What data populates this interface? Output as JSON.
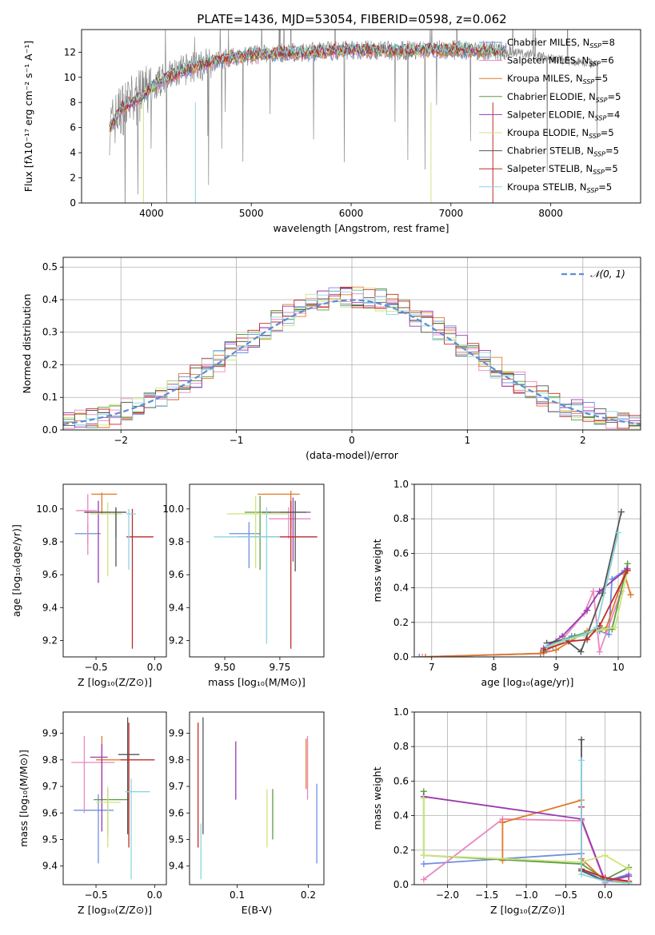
{
  "title": "PLATE=1436, MJD=53054, FIBERID=0598, z=0.062",
  "colors": {
    "chabrier_miles": "#6f8fe0",
    "salpeter_miles": "#e888c0",
    "kroupa_miles": "#e07a2a",
    "chabrier_elodie": "#5f9a45",
    "salpeter_elodie": "#9a3ab0",
    "kroupa_elodie": "#cde57a",
    "chabrier_stelib": "#555555",
    "salpeter_stelib": "#c02a2a",
    "kroupa_stelib": "#8ad6df"
  },
  "chart_data": [
    {
      "id": "spectrum",
      "type": "line",
      "title": "PLATE=1436, MJD=53054, FIBERID=0598, z=0.062",
      "xlabel": "wavelength [Angstrom, rest frame]",
      "ylabel": "Flux [fλ10⁻¹⁷ erg cm⁻² s⁻¹ A⁻¹]",
      "xlim": [
        3300,
        8900
      ],
      "ylim": [
        0,
        13.8
      ],
      "xticks": [
        "4000",
        "5000",
        "6000",
        "7000",
        "8000"
      ],
      "yticks": [
        "0",
        "2",
        "4",
        "6",
        "8",
        "10",
        "12"
      ],
      "xtick_values": [
        4000,
        5000,
        6000,
        7000,
        8000
      ],
      "ytick_values": [
        0,
        2,
        4,
        6,
        8,
        10,
        12
      ],
      "legend": [
        {
          "name": "Chabrier MILES, N_SSP=8",
          "color_key": "chabrier_miles"
        },
        {
          "name": "Salpeter MILES, N_SSP=6",
          "color_key": "salpeter_miles"
        },
        {
          "name": "Kroupa MILES, N_SSP=5",
          "color_key": "kroupa_miles"
        },
        {
          "name": "Chabrier ELODIE, N_SSP=5",
          "color_key": "chabrier_elodie"
        },
        {
          "name": "Salpeter ELODIE, N_SSP=4",
          "color_key": "salpeter_elodie"
        },
        {
          "name": "Kroupa ELODIE, N_SSP=5",
          "color_key": "kroupa_elodie"
        },
        {
          "name": "Chabrier STELIB, N_SSP=5",
          "color_key": "chabrier_stelib"
        },
        {
          "name": "Salpeter STELIB, N_SSP=5",
          "color_key": "salpeter_stelib"
        },
        {
          "name": "Kroupa STELIB, N_SSP=5",
          "color_key": "kroupa_stelib"
        }
      ],
      "continuum": [
        [
          3580,
          6.0
        ],
        [
          3700,
          7.5
        ],
        [
          3900,
          8.5
        ],
        [
          4100,
          9.8
        ],
        [
          4400,
          10.8
        ],
        [
          4800,
          11.6
        ],
        [
          5200,
          11.9
        ],
        [
          5600,
          12.0
        ],
        [
          6000,
          12.2
        ],
        [
          6500,
          12.1
        ],
        [
          7000,
          12.2
        ],
        [
          7500,
          12.1
        ],
        [
          7800,
          11.8
        ],
        [
          8000,
          11.5
        ],
        [
          8300,
          11.2
        ],
        [
          8500,
          11.1
        ]
      ]
    },
    {
      "id": "residuals",
      "type": "step",
      "xlabel": "(data-model)/error",
      "ylabel": "Normed distribution",
      "xlim": [
        -2.5,
        2.5
      ],
      "ylim": [
        0,
        0.53
      ],
      "xticks": [
        "−2",
        "−1",
        "0",
        "1",
        "2"
      ],
      "yticks": [
        "0.0",
        "0.1",
        "0.2",
        "0.3",
        "0.4",
        "0.5"
      ],
      "xtick_values": [
        -2,
        -1,
        0,
        1,
        2
      ],
      "ytick_values": [
        0,
        0.1,
        0.2,
        0.3,
        0.4,
        0.5
      ],
      "legend": "𝒩(0, 1)",
      "gaussian_color": "#5b8dd6"
    },
    {
      "id": "age_vs_Z",
      "type": "errorbar",
      "xlabel": "Z [log₁₀(Z/Z⊙)]",
      "ylabel": "age  [log₁₀(age/yr)]",
      "xlim": [
        -0.78,
        0.1
      ],
      "ylim": [
        9.1,
        10.15
      ],
      "xticks": [
        "−0.5",
        "0.0"
      ],
      "yticks": [
        "9.2",
        "9.4",
        "9.6",
        "9.8",
        "10.0"
      ],
      "xtick_values": [
        -0.5,
        0.0
      ],
      "ytick_values": [
        9.2,
        9.4,
        9.6,
        9.8,
        10.0
      ],
      "points": [
        {
          "k": "chabrier_miles",
          "x": -0.57,
          "y": 9.85,
          "xe": [
            0.11,
            0.11
          ],
          "ye": [
            0.06,
            0.06
          ]
        },
        {
          "k": "salpeter_miles",
          "x": -0.57,
          "y": 9.99,
          "xe": [
            0.1,
            0.08
          ],
          "ye": [
            0.27,
            0.1
          ]
        },
        {
          "k": "kroupa_miles",
          "x": -0.45,
          "y": 10.09,
          "xe": [
            0.09,
            0.13
          ],
          "ye": [
            0.12,
            0.01
          ]
        },
        {
          "k": "chabrier_elodie",
          "x": -0.33,
          "y": 9.98,
          "xe": [
            0.06,
            0.08
          ],
          "ye": [
            0.15,
            0.02
          ]
        },
        {
          "k": "salpeter_elodie",
          "x": -0.48,
          "y": 9.98,
          "xe": [
            0.12,
            0.1
          ],
          "ye": [
            0.43,
            0.07
          ]
        },
        {
          "k": "kroupa_elodie",
          "x": -0.4,
          "y": 9.97,
          "xe": [
            0.15,
            0.12
          ],
          "ye": [
            0.38,
            0.07
          ]
        },
        {
          "k": "chabrier_stelib",
          "x": -0.33,
          "y": 9.98,
          "xe": [
            0.27,
            0.09
          ],
          "ye": [
            0.33,
            0.03
          ]
        },
        {
          "k": "salpeter_stelib",
          "x": -0.19,
          "y": 9.83,
          "xe": [
            0.05,
            0.18
          ],
          "ye": [
            0.68,
            0.17
          ]
        },
        {
          "k": "kroupa_stelib",
          "x": -0.22,
          "y": 9.97,
          "xe": [
            0.02,
            0.06
          ],
          "ye": [
            0.34,
            0.03
          ]
        }
      ]
    },
    {
      "id": "age_vs_mass",
      "type": "errorbar",
      "xlabel": "mass [log₁₀(M/M⊙)]",
      "ylabel": "",
      "xlim": [
        9.34,
        9.95
      ],
      "ylim": [
        9.1,
        10.15
      ],
      "xticks": [
        "9.50",
        "9.75"
      ],
      "yticks": [
        "9.2",
        "9.4",
        "9.6",
        "9.8",
        "10.0"
      ],
      "xtick_values": [
        9.5,
        9.75
      ],
      "ytick_values": [
        9.2,
        9.4,
        9.6,
        9.8,
        10.0
      ],
      "points": [
        {
          "k": "chabrier_miles",
          "x": 9.61,
          "y": 9.85,
          "xe": [
            0.09,
            0.05
          ],
          "ye": [
            0.21,
            0.07
          ]
        },
        {
          "k": "salpeter_miles",
          "x": 9.79,
          "y": 9.94,
          "xe": [
            0.09,
            0.1
          ],
          "ye": [
            0.12,
            0.07
          ]
        },
        {
          "k": "kroupa_miles",
          "x": 9.8,
          "y": 10.09,
          "xe": [
            0.15,
            0.04
          ],
          "ye": [
            0.21,
            0.02
          ]
        },
        {
          "k": "chabrier_elodie",
          "x": 9.66,
          "y": 9.98,
          "xe": [
            0.07,
            0.05
          ],
          "ye": [
            0.35,
            0.1
          ]
        },
        {
          "k": "salpeter_elodie",
          "x": 9.81,
          "y": 9.98,
          "xe": [
            0.06,
            0.08
          ],
          "ye": [
            0.3,
            0.09
          ]
        },
        {
          "k": "kroupa_elodie",
          "x": 9.64,
          "y": 9.97,
          "xe": [
            0.13,
            0.15
          ],
          "ye": [
            0.33,
            0.11
          ]
        },
        {
          "k": "chabrier_stelib",
          "x": 9.82,
          "y": 9.98,
          "xe": [
            0.15,
            0.05
          ],
          "ye": [
            0.36,
            0.07
          ]
        },
        {
          "k": "salpeter_stelib",
          "x": 9.8,
          "y": 9.83,
          "xe": [
            0.24,
            0.12
          ],
          "ye": [
            0.68,
            0.22
          ]
        },
        {
          "k": "kroupa_stelib",
          "x": 9.69,
          "y": 9.83,
          "xe": [
            0.24,
            0.06
          ],
          "ye": [
            0.65,
            0.18
          ]
        }
      ]
    },
    {
      "id": "weight_vs_age",
      "type": "line",
      "xlabel": "age  [log₁₀(age/yr)]",
      "ylabel": "mass weight",
      "xlim": [
        6.72,
        10.36
      ],
      "ylim": [
        0,
        1.0
      ],
      "xticks": [
        "7",
        "8",
        "9",
        "10"
      ],
      "yticks": [
        "0.0",
        "0.2",
        "0.4",
        "0.6",
        "0.8",
        "1.0"
      ],
      "xtick_values": [
        7,
        8,
        9,
        10
      ],
      "ytick_values": [
        0,
        0.2,
        0.4,
        0.6,
        0.8,
        1.0
      ],
      "series": [
        {
          "k": "chabrier_miles",
          "x": [
            6.8,
            8.75,
            8.95,
            9.25,
            9.7,
            9.85,
            9.9,
            10.1
          ],
          "y": [
            0.0,
            0.02,
            0.06,
            0.12,
            0.15,
            0.13,
            0.45,
            0.5
          ]
        },
        {
          "k": "salpeter_miles",
          "x": [
            6.85,
            8.8,
            9.1,
            9.45,
            9.6,
            9.7,
            10.05
          ],
          "y": [
            0.0,
            0.02,
            0.1,
            0.25,
            0.38,
            0.03,
            0.38
          ]
        },
        {
          "k": "kroupa_miles",
          "x": [
            6.9,
            8.75,
            9.0,
            9.5,
            9.8,
            10.1,
            10.2
          ],
          "y": [
            0.0,
            0.02,
            0.04,
            0.15,
            0.16,
            0.48,
            0.36
          ]
        },
        {
          "k": "chabrier_elodie",
          "x": [
            8.8,
            9.0,
            9.3,
            9.7,
            9.9,
            10.15
          ],
          "y": [
            0.03,
            0.09,
            0.12,
            0.17,
            0.16,
            0.54
          ]
        },
        {
          "k": "salpeter_elodie",
          "x": [
            8.8,
            9.1,
            9.5,
            9.7,
            10.15
          ],
          "y": [
            0.05,
            0.12,
            0.27,
            0.38,
            0.51
          ]
        },
        {
          "k": "kroupa_elodie",
          "x": [
            8.8,
            9.1,
            9.5,
            9.75,
            9.95,
            10.15
          ],
          "y": [
            0.04,
            0.09,
            0.13,
            0.16,
            0.17,
            0.5
          ]
        },
        {
          "k": "chabrier_stelib",
          "x": [
            8.85,
            9.15,
            9.4,
            9.75,
            10.05
          ],
          "y": [
            0.08,
            0.1,
            0.03,
            0.37,
            0.84
          ]
        },
        {
          "k": "salpeter_stelib",
          "x": [
            8.8,
            9.2,
            9.5,
            9.7,
            10.15
          ],
          "y": [
            0.04,
            0.09,
            0.1,
            0.18,
            0.5
          ]
        },
        {
          "k": "kroupa_stelib",
          "x": [
            8.85,
            9.15,
            9.45,
            9.65,
            10.0
          ],
          "y": [
            0.06,
            0.1,
            0.13,
            0.17,
            0.72
          ]
        }
      ]
    },
    {
      "id": "mass_vs_Z",
      "type": "errorbar",
      "xlabel": "Z [log₁₀(Z/Z⊙)]",
      "ylabel": "mass [log₁₀(M/M⊙)]",
      "xlim": [
        -0.78,
        0.1
      ],
      "ylim": [
        9.33,
        9.98
      ],
      "xticks": [
        "−0.5",
        "0.0"
      ],
      "yticks": [
        "9.4",
        "9.5",
        "9.6",
        "9.7",
        "9.8",
        "9.9"
      ],
      "xtick_values": [
        -0.5,
        0.0
      ],
      "ytick_values": [
        9.4,
        9.5,
        9.6,
        9.7,
        9.8,
        9.9
      ],
      "points": [
        {
          "k": "chabrier_miles",
          "x": -0.48,
          "y": 9.61,
          "xe": [
            0.21,
            0.13
          ],
          "ye": [
            0.2,
            0.06
          ]
        },
        {
          "k": "salpeter_miles",
          "x": -0.6,
          "y": 9.79,
          "xe": [
            0.11,
            0.26
          ],
          "ye": [
            0.19,
            0.1
          ]
        },
        {
          "k": "kroupa_miles",
          "x": -0.45,
          "y": 9.8,
          "xe": [
            0.05,
            0.17
          ],
          "ye": [
            0.16,
            0.09
          ]
        },
        {
          "k": "chabrier_elodie",
          "x": -0.4,
          "y": 9.65,
          "xe": [
            0.12,
            0.18
          ],
          "ye": [
            0.14,
            0.04
          ]
        },
        {
          "k": "salpeter_elodie",
          "x": -0.45,
          "y": 9.81,
          "xe": [
            0.1,
            0.05
          ],
          "ye": [
            0.28,
            0.05
          ]
        },
        {
          "k": "kroupa_elodie",
          "x": -0.4,
          "y": 9.64,
          "xe": [
            0.1,
            0.11
          ],
          "ye": [
            0.17,
            0.06
          ]
        },
        {
          "k": "chabrier_stelib",
          "x": -0.23,
          "y": 9.82,
          "xe": [
            0.08,
            0.1
          ],
          "ye": [
            0.3,
            0.14
          ]
        },
        {
          "k": "salpeter_stelib",
          "x": -0.22,
          "y": 9.8,
          "xe": [
            0.07,
            0.22
          ],
          "ye": [
            0.33,
            0.14
          ]
        },
        {
          "k": "kroupa_stelib",
          "x": -0.2,
          "y": 9.68,
          "xe": [
            0.05,
            0.16
          ],
          "ye": [
            0.33,
            0.05
          ]
        }
      ]
    },
    {
      "id": "mass_vs_ebv",
      "type": "errorbar",
      "xlabel": "E(B-V)",
      "ylabel": "",
      "xlim": [
        0.033,
        0.222
      ],
      "ylim": [
        9.33,
        9.98
      ],
      "xticks": [
        "0.1",
        "0.2"
      ],
      "yticks": [
        "9.4",
        "9.5",
        "9.6",
        "9.7",
        "9.8",
        "9.9"
      ],
      "xtick_values": [
        0.1,
        0.2
      ],
      "ytick_values": [
        9.4,
        9.5,
        9.6,
        9.7,
        9.8,
        9.9
      ],
      "bars": [
        {
          "k": "chabrier_miles",
          "x": 0.212,
          "y0": 9.41,
          "y1": 9.71
        },
        {
          "k": "salpeter_miles",
          "x": 0.199,
          "y0": 9.65,
          "y1": 9.89
        },
        {
          "k": "kroupa_miles",
          "x": 0.197,
          "y0": 9.69,
          "y1": 9.88
        },
        {
          "k": "chabrier_elodie",
          "x": 0.15,
          "y0": 9.5,
          "y1": 9.69
        },
        {
          "k": "salpeter_elodie",
          "x": 0.098,
          "y0": 9.65,
          "y1": 9.87
        },
        {
          "k": "kroupa_elodie",
          "x": 0.142,
          "y0": 9.47,
          "y1": 9.69
        },
        {
          "k": "chabrier_stelib",
          "x": 0.052,
          "y0": 9.52,
          "y1": 9.96
        },
        {
          "k": "salpeter_stelib",
          "x": 0.045,
          "y0": 9.47,
          "y1": 9.94
        },
        {
          "k": "kroupa_stelib",
          "x": 0.049,
          "y0": 9.35,
          "y1": 9.56
        }
      ]
    },
    {
      "id": "weight_vs_Z",
      "type": "line",
      "xlabel": "Z [log₁₀(Z/Z⊙)]",
      "ylabel": "mass weight",
      "xlim": [
        -2.42,
        0.45
      ],
      "ylim": [
        0,
        1.0
      ],
      "xticks": [
        "−2.0",
        "−1.5",
        "−1.0",
        "−0.5",
        "0.0"
      ],
      "yticks": [
        "0.0",
        "0.2",
        "0.4",
        "0.6",
        "0.8",
        "1.0"
      ],
      "xtick_values": [
        -2.0,
        -1.5,
        -1.0,
        -0.5,
        0.0
      ],
      "ytick_values": [
        0,
        0.2,
        0.4,
        0.6,
        0.8,
        1.0
      ],
      "series": [
        {
          "k": "chabrier_miles",
          "x": [
            -2.3,
            -0.3,
            -0.3,
            0.0,
            0.3
          ],
          "y": [
            0.12,
            0.18,
            0.09,
            0.02,
            0.06
          ]
        },
        {
          "k": "salpeter_miles",
          "x": [
            -2.3,
            -1.3,
            -0.3,
            0.0,
            0.3
          ],
          "y": [
            0.03,
            0.38,
            0.37,
            0.01,
            0.05
          ]
        },
        {
          "k": "kroupa_miles",
          "x": [
            -1.3,
            -1.3,
            -0.3,
            -0.3,
            0.0,
            0.3
          ],
          "y": [
            0.14,
            0.36,
            0.49,
            0.15,
            0.02,
            0.02
          ]
        },
        {
          "k": "chabrier_elodie",
          "x": [
            -2.3,
            -2.3,
            -0.3,
            0.0,
            0.3
          ],
          "y": [
            0.54,
            0.17,
            0.12,
            0.03,
            0.1
          ]
        },
        {
          "k": "salpeter_elodie",
          "x": [
            -2.3,
            -0.3,
            0.0,
            0.3
          ],
          "y": [
            0.51,
            0.38,
            0.02,
            0.05
          ]
        },
        {
          "k": "kroupa_elodie",
          "x": [
            -2.3,
            -2.3,
            -0.3,
            0.0,
            0.3
          ],
          "y": [
            0.5,
            0.17,
            0.13,
            0.17,
            0.09
          ]
        },
        {
          "k": "chabrier_stelib",
          "x": [
            -0.3,
            -0.3,
            0.0,
            0.3
          ],
          "y": [
            0.84,
            0.08,
            0.02,
            0.01
          ]
        },
        {
          "k": "salpeter_stelib",
          "x": [
            -0.3,
            -0.3,
            0.0,
            0.3
          ],
          "y": [
            0.45,
            0.09,
            0.04,
            0.02
          ]
        },
        {
          "k": "kroupa_stelib",
          "x": [
            -0.3,
            -0.3,
            0.0,
            0.3
          ],
          "y": [
            0.72,
            0.06,
            0.02,
            0.01
          ]
        }
      ]
    }
  ]
}
